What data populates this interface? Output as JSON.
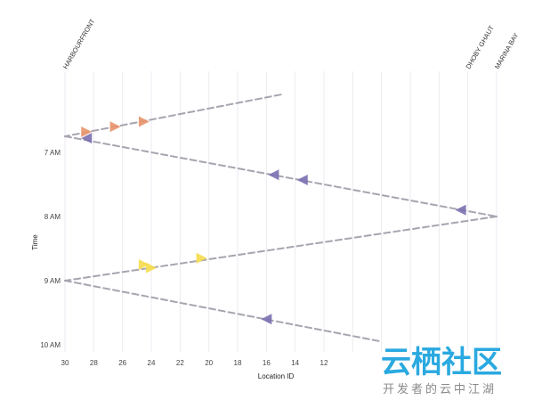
{
  "chart_data": {
    "type": "line",
    "xlabel": "Location ID",
    "ylabel": "Time",
    "x_axis": {
      "range": [
        30,
        0
      ],
      "reversed": true,
      "ticks": [
        30,
        28,
        26,
        24,
        22,
        20,
        18,
        16,
        14,
        12
      ]
    },
    "y_axis": {
      "range": [
        "6:15 AM",
        "10:00 AM"
      ],
      "inverted": true,
      "ticks": [
        "7 AM",
        "8 AM",
        "9 AM",
        "10 AM"
      ]
    },
    "grid": {
      "vertical": true,
      "horizontal": false
    },
    "station_labels": [
      {
        "label": "HARBOURFRONT",
        "location": 30
      },
      {
        "label": "DHOBY GHAUT",
        "location": 2
      },
      {
        "label": "MARINA BAY",
        "location": 0
      }
    ],
    "routes": [
      {
        "points": [
          {
            "location": 15,
            "time": 6.1
          },
          {
            "location": 30,
            "time": 6.75
          }
        ]
      },
      {
        "points": [
          {
            "location": 30,
            "time": 6.75
          },
          {
            "location": 0,
            "time": 8.0
          }
        ]
      },
      {
        "points": [
          {
            "location": 0,
            "time": 8.0
          },
          {
            "location": 30,
            "time": 9.0
          }
        ]
      },
      {
        "points": [
          {
            "location": 30,
            "time": 9.0
          },
          {
            "location": 8,
            "time": 9.95
          }
        ]
      }
    ],
    "markers": [
      {
        "location": 28.5,
        "time": 6.68,
        "color": "#e8946b",
        "direction": "right"
      },
      {
        "location": 26.5,
        "time": 6.6,
        "color": "#e8946b",
        "direction": "right"
      },
      {
        "location": 24.5,
        "time": 6.52,
        "color": "#e8946b",
        "direction": "right"
      },
      {
        "location": 28.5,
        "time": 6.78,
        "color": "#7a6fb0",
        "direction": "left"
      },
      {
        "location": 15.5,
        "time": 7.35,
        "color": "#7a6fb0",
        "direction": "left"
      },
      {
        "location": 13.5,
        "time": 7.43,
        "color": "#7a6fb0",
        "direction": "left"
      },
      {
        "location": 2.5,
        "time": 7.9,
        "color": "#7a6fb0",
        "direction": "left"
      },
      {
        "location": 24.5,
        "time": 8.75,
        "color": "#f5dc4d",
        "direction": "right"
      },
      {
        "location": 24.0,
        "time": 8.8,
        "color": "#f5dc4d",
        "direction": "right"
      },
      {
        "location": 20.5,
        "time": 8.65,
        "color": "#f5dc4d",
        "direction": "right"
      },
      {
        "location": 16.0,
        "time": 9.6,
        "color": "#7a6fb0",
        "direction": "left"
      }
    ],
    "line_color": "#a8a4b0",
    "grid_color": "#eceaf0"
  },
  "watermark": {
    "main": "云栖社区",
    "sub": "开发者的云中江湖",
    "color": "#2aa9e0"
  }
}
